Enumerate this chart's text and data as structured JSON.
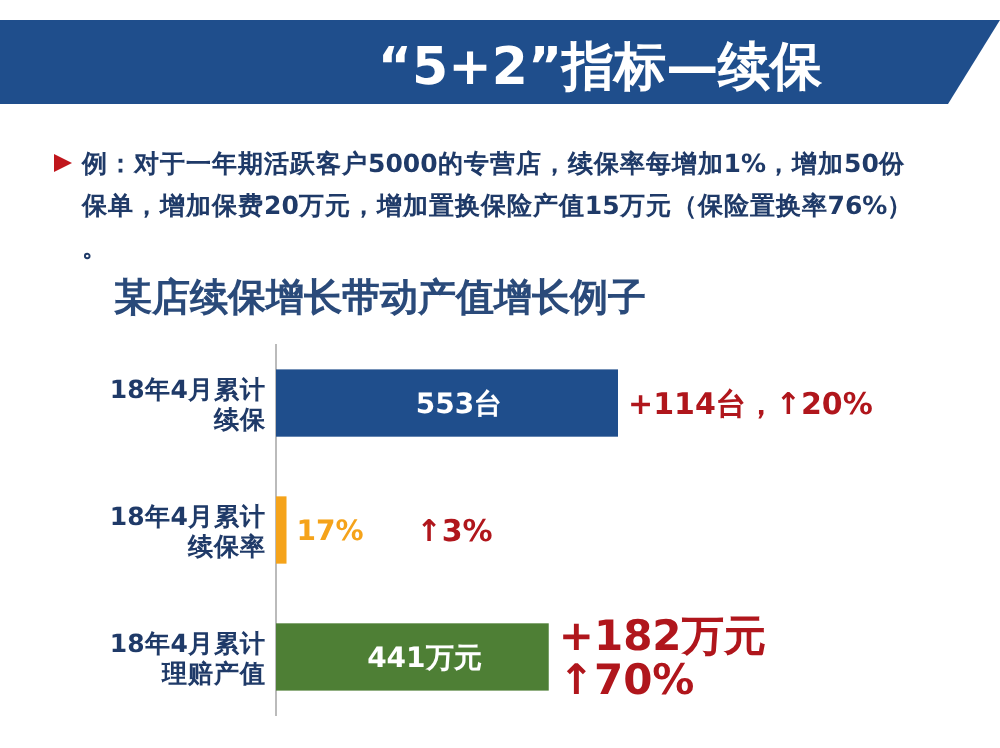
{
  "chart_data": {
    "type": "bar",
    "orientation": "horizontal",
    "title": "“5+2”指标—续保",
    "subtitle": "某店续保增长带动产值增长例子",
    "categories": [
      "18年4月累计续保",
      "18年4月累计续保率",
      "18年4月累计理赔产值"
    ],
    "values": [
      553,
      17,
      441
    ],
    "colors": [
      "#1f4e8c",
      "#f5a31a",
      "#4e7f35"
    ],
    "value_labels": [
      "553台",
      "17%",
      "441万元"
    ],
    "annotations": [
      "例：对于一年期活跃客户5000的专营店，续保率每增加1%，增加50份保单，增加保费20万元，增加置换保险产值15万元（保险置换率76%）。",
      "+114台，↑20%",
      "↑3%",
      "+182万元",
      "↑70%"
    ]
  }
}
